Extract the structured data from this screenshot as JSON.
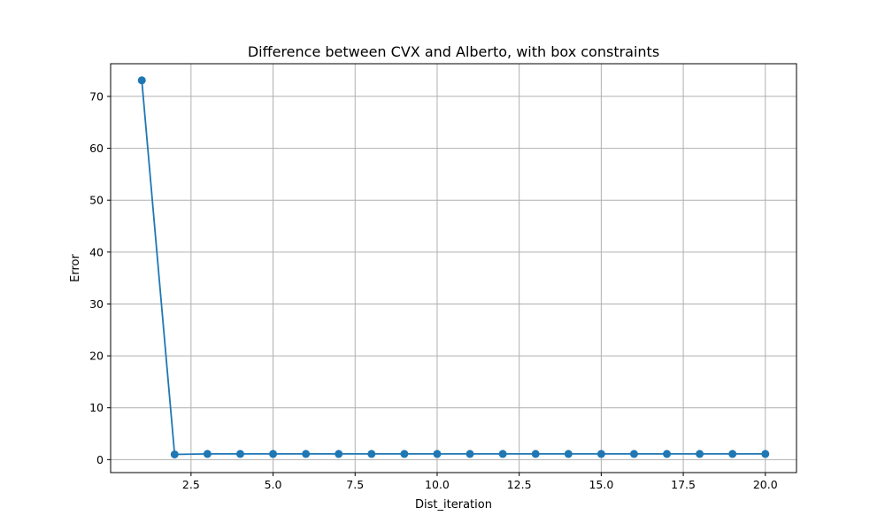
{
  "chart_data": {
    "type": "line",
    "title": "Difference between CVX and Alberto, with box constraints",
    "xlabel": "Dist_iteration",
    "ylabel": "Error",
    "xlim": [
      0.05,
      20.95
    ],
    "ylim": [
      -2.5,
      76.3
    ],
    "xticks": [
      2.5,
      5.0,
      7.5,
      10.0,
      12.5,
      15.0,
      17.5,
      20.0
    ],
    "xtick_labels": [
      "2.5",
      "5.0",
      "7.5",
      "10.0",
      "12.5",
      "15.0",
      "17.5",
      "20.0"
    ],
    "yticks": [
      0,
      10,
      20,
      30,
      40,
      50,
      60,
      70
    ],
    "ytick_labels": [
      "0",
      "10",
      "20",
      "30",
      "40",
      "50",
      "60",
      "70"
    ],
    "grid": true,
    "marker": "circle",
    "color": "#1f77b4",
    "series": [
      {
        "x": [
          1,
          2,
          3,
          4,
          5,
          6,
          7,
          8,
          9,
          10,
          11,
          12,
          13,
          14,
          15,
          16,
          17,
          18,
          19,
          20
        ],
        "values": [
          73.1,
          1.0,
          1.1,
          1.1,
          1.1,
          1.1,
          1.1,
          1.1,
          1.1,
          1.1,
          1.1,
          1.1,
          1.1,
          1.1,
          1.1,
          1.1,
          1.1,
          1.1,
          1.1,
          1.1
        ]
      }
    ]
  }
}
